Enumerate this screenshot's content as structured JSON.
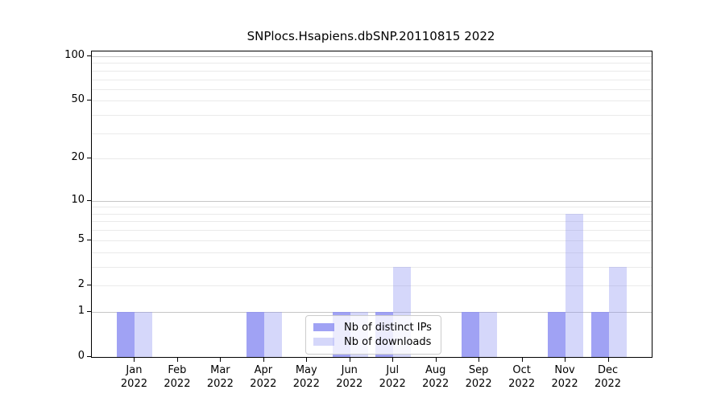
{
  "chart_data": {
    "type": "bar",
    "title": "SNPlocs.Hsapiens.dbSNP.20110815 2022",
    "categories": [
      "Jan",
      "Feb",
      "Mar",
      "Apr",
      "May",
      "Jun",
      "Jul",
      "Aug",
      "Sep",
      "Oct",
      "Nov",
      "Dec"
    ],
    "category_year": "2022",
    "series": [
      {
        "name": "Nb of distinct IPs",
        "values": [
          1,
          0,
          0,
          1,
          0,
          1,
          1,
          0,
          1,
          0,
          1,
          1
        ],
        "color": "rgba(136,139,241,0.80)"
      },
      {
        "name": "Nb of downloads",
        "values": [
          1,
          0,
          0,
          1,
          0,
          1,
          3,
          0,
          1,
          0,
          8,
          3
        ],
        "color": "rgba(136,139,241,0.35)"
      }
    ],
    "yscale": "log1p",
    "ylim": [
      0,
      108
    ],
    "ytick_labels": [
      "0",
      "1",
      "2",
      "5",
      "10",
      "20",
      "50",
      "100"
    ],
    "yticks": [
      0,
      1,
      2,
      5,
      10,
      20,
      50,
      100
    ],
    "major_gridlines": [
      1,
      10,
      100
    ],
    "minor_gridlines": [
      2,
      3,
      4,
      5,
      6,
      7,
      8,
      9,
      20,
      30,
      40,
      50,
      60,
      70,
      80,
      90
    ],
    "legend_position": "bottom-center",
    "grid": true,
    "colors": {
      "bar_base": "#888bf1",
      "major_grid": "#c6c6c6",
      "minor_grid": "#eaeaea",
      "axis": "#000000",
      "text": "#000000",
      "background": "#ffffff",
      "legend_border": "#cccccc"
    }
  }
}
